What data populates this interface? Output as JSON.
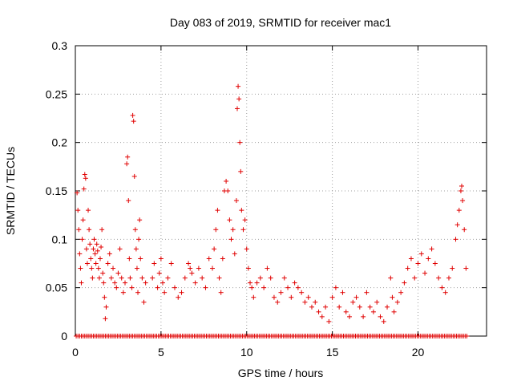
{
  "chart_data": {
    "type": "scatter",
    "title": "Day 083 of 2019, SRMTID for receiver mac1",
    "xlabel": "GPS time / hours",
    "ylabel": "SRMTID / TECUs",
    "xlim": [
      0,
      24
    ],
    "ylim": [
      0,
      0.3
    ],
    "xticks": [
      "0",
      "5",
      "10",
      "15",
      "20"
    ],
    "xtick_values": [
      0,
      5,
      10,
      15,
      20
    ],
    "yticks": [
      "0",
      "0.05",
      "0.1",
      "0.15",
      "0.2",
      "0.25",
      "0.3"
    ],
    "ytick_values": [
      0,
      0.05,
      0.1,
      0.15,
      0.2,
      0.25,
      0.3
    ],
    "grid": true,
    "marker": "+",
    "color": "#e00000",
    "series": [
      {
        "name": "SRMTID",
        "points": [
          [
            0.1,
            0.148
          ],
          [
            0.15,
            0.13
          ],
          [
            0.2,
            0.11
          ],
          [
            0.25,
            0.085
          ],
          [
            0.3,
            0.07
          ],
          [
            0.35,
            0.055
          ],
          [
            0.4,
            0.1
          ],
          [
            0.45,
            0.12
          ],
          [
            0.5,
            0.152
          ],
          [
            0.55,
            0.167
          ],
          [
            0.6,
            0.163
          ],
          [
            0.65,
            0.09
          ],
          [
            0.7,
            0.075
          ],
          [
            0.75,
            0.13
          ],
          [
            0.8,
            0.11
          ],
          [
            0.85,
            0.095
          ],
          [
            0.9,
            0.08
          ],
          [
            0.95,
            0.07
          ],
          [
            1.0,
            0.06
          ],
          [
            1.05,
            0.09
          ],
          [
            1.1,
            0.1
          ],
          [
            1.15,
            0.085
          ],
          [
            1.2,
            0.075
          ],
          [
            1.25,
            0.095
          ],
          [
            1.3,
            0.088
          ],
          [
            1.35,
            0.07
          ],
          [
            1.4,
            0.06
          ],
          [
            1.45,
            0.08
          ],
          [
            1.5,
            0.092
          ],
          [
            1.55,
            0.11
          ],
          [
            1.6,
            0.065
          ],
          [
            1.65,
            0.055
          ],
          [
            1.7,
            0.04
          ],
          [
            1.75,
            0.018
          ],
          [
            1.8,
            0.03
          ],
          [
            1.9,
            0.075
          ],
          [
            2.0,
            0.085
          ],
          [
            2.1,
            0.06
          ],
          [
            2.2,
            0.07
          ],
          [
            2.3,
            0.055
          ],
          [
            2.4,
            0.05
          ],
          [
            2.5,
            0.065
          ],
          [
            2.6,
            0.09
          ],
          [
            2.7,
            0.06
          ],
          [
            2.8,
            0.045
          ],
          [
            2.9,
            0.055
          ],
          [
            3.0,
            0.178
          ],
          [
            3.05,
            0.185
          ],
          [
            3.1,
            0.14
          ],
          [
            3.15,
            0.08
          ],
          [
            3.2,
            0.06
          ],
          [
            3.3,
            0.05
          ],
          [
            3.35,
            0.228
          ],
          [
            3.4,
            0.222
          ],
          [
            3.45,
            0.165
          ],
          [
            3.5,
            0.11
          ],
          [
            3.55,
            0.09
          ],
          [
            3.6,
            0.07
          ],
          [
            3.65,
            0.045
          ],
          [
            3.7,
            0.1
          ],
          [
            3.75,
            0.12
          ],
          [
            3.8,
            0.08
          ],
          [
            3.9,
            0.06
          ],
          [
            4.0,
            0.035
          ],
          [
            4.1,
            0.055
          ],
          [
            4.5,
            0.06
          ],
          [
            4.6,
            0.075
          ],
          [
            4.8,
            0.05
          ],
          [
            4.9,
            0.065
          ],
          [
            5.0,
            0.08
          ],
          [
            5.1,
            0.055
          ],
          [
            5.2,
            0.045
          ],
          [
            5.4,
            0.06
          ],
          [
            5.6,
            0.075
          ],
          [
            5.8,
            0.05
          ],
          [
            6.0,
            0.04
          ],
          [
            6.2,
            0.045
          ],
          [
            6.4,
            0.06
          ],
          [
            6.6,
            0.075
          ],
          [
            6.7,
            0.07
          ],
          [
            6.8,
            0.065
          ],
          [
            7.0,
            0.055
          ],
          [
            7.2,
            0.07
          ],
          [
            7.4,
            0.06
          ],
          [
            7.6,
            0.05
          ],
          [
            7.8,
            0.08
          ],
          [
            8.0,
            0.07
          ],
          [
            8.1,
            0.09
          ],
          [
            8.2,
            0.11
          ],
          [
            8.3,
            0.13
          ],
          [
            8.4,
            0.06
          ],
          [
            8.5,
            0.045
          ],
          [
            8.6,
            0.08
          ],
          [
            8.7,
            0.15
          ],
          [
            8.8,
            0.16
          ],
          [
            8.9,
            0.15
          ],
          [
            9.0,
            0.12
          ],
          [
            9.1,
            0.1
          ],
          [
            9.2,
            0.11
          ],
          [
            9.3,
            0.085
          ],
          [
            9.4,
            0.14
          ],
          [
            9.45,
            0.235
          ],
          [
            9.5,
            0.258
          ],
          [
            9.55,
            0.245
          ],
          [
            9.6,
            0.2
          ],
          [
            9.65,
            0.17
          ],
          [
            9.7,
            0.13
          ],
          [
            9.8,
            0.11
          ],
          [
            9.9,
            0.12
          ],
          [
            10.0,
            0.09
          ],
          [
            10.1,
            0.07
          ],
          [
            10.2,
            0.055
          ],
          [
            10.3,
            0.05
          ],
          [
            10.4,
            0.04
          ],
          [
            10.6,
            0.055
          ],
          [
            10.8,
            0.06
          ],
          [
            11.0,
            0.05
          ],
          [
            11.2,
            0.07
          ],
          [
            11.4,
            0.06
          ],
          [
            11.6,
            0.04
          ],
          [
            11.8,
            0.035
          ],
          [
            12.0,
            0.045
          ],
          [
            12.2,
            0.06
          ],
          [
            12.4,
            0.05
          ],
          [
            12.6,
            0.04
          ],
          [
            12.8,
            0.055
          ],
          [
            13.0,
            0.05
          ],
          [
            13.2,
            0.045
          ],
          [
            13.4,
            0.035
          ],
          [
            13.6,
            0.04
          ],
          [
            13.8,
            0.03
          ],
          [
            14.0,
            0.035
          ],
          [
            14.2,
            0.025
          ],
          [
            14.4,
            0.02
          ],
          [
            14.6,
            0.03
          ],
          [
            14.8,
            0.015
          ],
          [
            15.0,
            0.04
          ],
          [
            15.2,
            0.05
          ],
          [
            15.4,
            0.03
          ],
          [
            15.6,
            0.045
          ],
          [
            15.8,
            0.025
          ],
          [
            16.0,
            0.02
          ],
          [
            16.2,
            0.035
          ],
          [
            16.4,
            0.04
          ],
          [
            16.6,
            0.03
          ],
          [
            16.8,
            0.02
          ],
          [
            17.0,
            0.045
          ],
          [
            17.2,
            0.03
          ],
          [
            17.4,
            0.025
          ],
          [
            17.6,
            0.035
          ],
          [
            17.8,
            0.02
          ],
          [
            18.0,
            0.015
          ],
          [
            18.2,
            0.03
          ],
          [
            18.4,
            0.06
          ],
          [
            18.5,
            0.04
          ],
          [
            18.6,
            0.025
          ],
          [
            18.8,
            0.035
          ],
          [
            19.0,
            0.045
          ],
          [
            19.2,
            0.055
          ],
          [
            19.4,
            0.07
          ],
          [
            19.6,
            0.08
          ],
          [
            19.8,
            0.06
          ],
          [
            20.0,
            0.075
          ],
          [
            20.2,
            0.085
          ],
          [
            20.4,
            0.065
          ],
          [
            20.6,
            0.08
          ],
          [
            20.8,
            0.09
          ],
          [
            21.0,
            0.075
          ],
          [
            21.2,
            0.06
          ],
          [
            21.4,
            0.05
          ],
          [
            21.6,
            0.045
          ],
          [
            21.8,
            0.06
          ],
          [
            22.0,
            0.07
          ],
          [
            22.2,
            0.1
          ],
          [
            22.3,
            0.115
          ],
          [
            22.4,
            0.13
          ],
          [
            22.5,
            0.15
          ],
          [
            22.55,
            0.155
          ],
          [
            22.6,
            0.14
          ],
          [
            22.7,
            0.11
          ],
          [
            22.8,
            0.07
          ]
        ]
      },
      {
        "name": "SRMTID zero samples",
        "y": 0,
        "x_range": [
          0.05,
          22.9
        ],
        "x_step": 0.1
      }
    ]
  }
}
